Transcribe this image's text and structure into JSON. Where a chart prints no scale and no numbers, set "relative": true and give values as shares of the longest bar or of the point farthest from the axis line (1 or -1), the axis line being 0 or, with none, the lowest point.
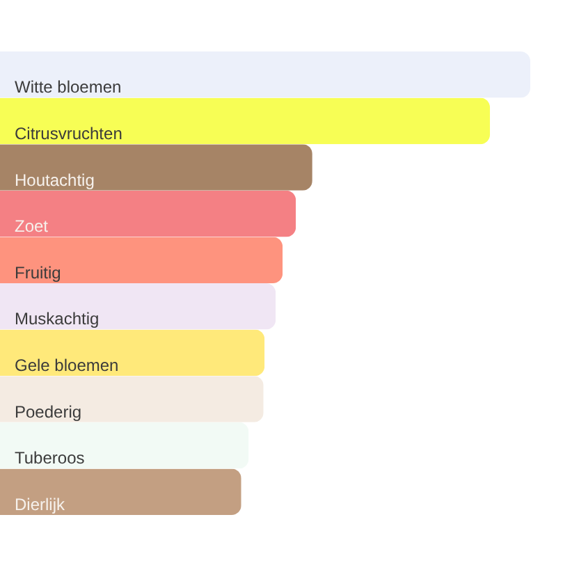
{
  "chart_data": {
    "type": "bar",
    "orientation": "horizontal",
    "relative": true,
    "categories": [
      "Witte bloemen",
      "Citrusvruchten",
      "Houtachtig",
      "Zoet",
      "Fruitig",
      "Muskachtig",
      "Gele bloemen",
      "Poederig",
      "Tuberoos",
      "Dierlijk"
    ],
    "values": [
      1,
      0.924,
      0.589,
      0.558,
      0.533,
      0.52,
      0.499,
      0.497,
      0.469,
      0.455
    ],
    "colors": [
      "#ecf0fa",
      "#f7fe55",
      "#a68466",
      "#f48084",
      "#fe937e",
      "#f0e6f4",
      "#ffe97a",
      "#f4ebe2",
      "#f2faf5",
      "#c39f82"
    ]
  }
}
